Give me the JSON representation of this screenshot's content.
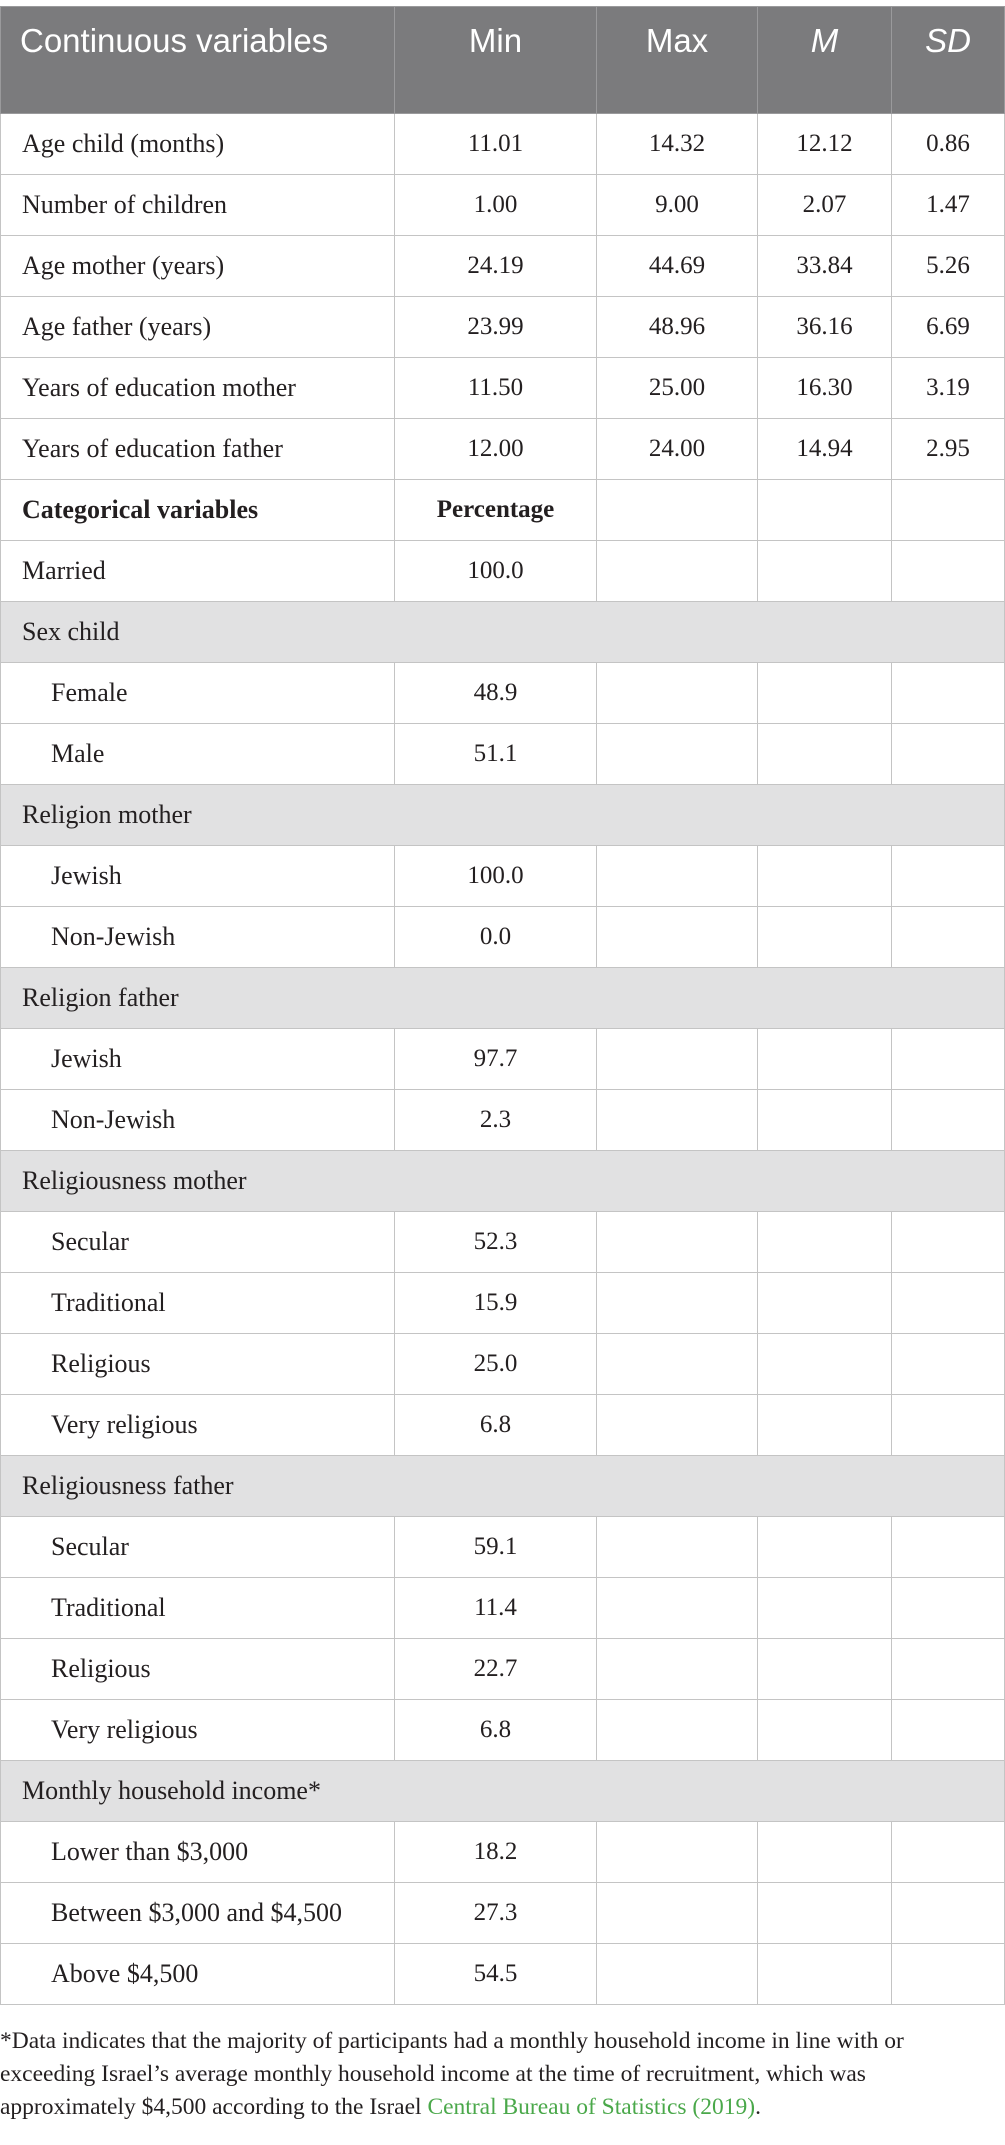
{
  "table": {
    "headers": {
      "label": "Continuous variables",
      "min": "Min",
      "max": "Max",
      "mean": "M",
      "sd": "SD"
    },
    "continuous": [
      {
        "label": "Age child (months)",
        "min": "11.01",
        "max": "14.32",
        "mean": "12.12",
        "sd": "0.86"
      },
      {
        "label": "Number of children",
        "min": "1.00",
        "max": "9.00",
        "mean": "2.07",
        "sd": "1.47"
      },
      {
        "label": "Age mother (years)",
        "min": "24.19",
        "max": "44.69",
        "mean": "33.84",
        "sd": "5.26"
      },
      {
        "label": "Age father (years)",
        "min": "23.99",
        "max": "48.96",
        "mean": "36.16",
        "sd": "6.69"
      },
      {
        "label": "Years of education mother",
        "min": "11.50",
        "max": "25.00",
        "mean": "16.30",
        "sd": "3.19"
      },
      {
        "label": "Years of education father",
        "min": "12.00",
        "max": "24.00",
        "mean": "14.94",
        "sd": "2.95"
      }
    ],
    "categorical_header": {
      "label": "Categorical variables",
      "value": "Percentage"
    },
    "married": {
      "label": "Married",
      "value": "100.0"
    },
    "groups": [
      {
        "label": "Sex child",
        "items": [
          {
            "label": "Female",
            "value": "48.9"
          },
          {
            "label": "Male",
            "value": "51.1"
          }
        ]
      },
      {
        "label": "Religion mother",
        "items": [
          {
            "label": "Jewish",
            "value": "100.0"
          },
          {
            "label": "Non-Jewish",
            "value": "0.0"
          }
        ]
      },
      {
        "label": "Religion father",
        "items": [
          {
            "label": "Jewish",
            "value": "97.7"
          },
          {
            "label": "Non-Jewish",
            "value": "2.3"
          }
        ]
      },
      {
        "label": "Religiousness mother",
        "items": [
          {
            "label": "Secular",
            "value": "52.3"
          },
          {
            "label": "Traditional",
            "value": "15.9"
          },
          {
            "label": "Religious",
            "value": "25.0"
          },
          {
            "label": "Very religious",
            "value": "6.8"
          }
        ]
      },
      {
        "label": "Religiousness father",
        "items": [
          {
            "label": "Secular",
            "value": "59.1"
          },
          {
            "label": "Traditional",
            "value": "11.4"
          },
          {
            "label": "Religious",
            "value": "22.7"
          },
          {
            "label": "Very religious",
            "value": "6.8"
          }
        ]
      },
      {
        "label": "Monthly household income*",
        "items": [
          {
            "label": "Lower than $3,000",
            "value": "18.2"
          },
          {
            "label": "Between $3,000 and $4,500",
            "value": "27.3"
          },
          {
            "label": "Above $4,500",
            "value": "54.5"
          }
        ]
      }
    ]
  },
  "footnote": {
    "text": "*Data indicates that the majority of participants had a monthly household income in line with or exceeding Israel’s average monthly household income at the time of recruitment, which was approximately $4,500 according to the Israel ",
    "link_text": "Central Bureau of Statistics (2019)",
    "suffix": ".",
    "link_color": "#4aa84a"
  },
  "colors": {
    "header_bg": "#7b7b7d",
    "group_bg": "#e1e1e2",
    "border": "#c4c4c4",
    "text": "#231f20"
  }
}
